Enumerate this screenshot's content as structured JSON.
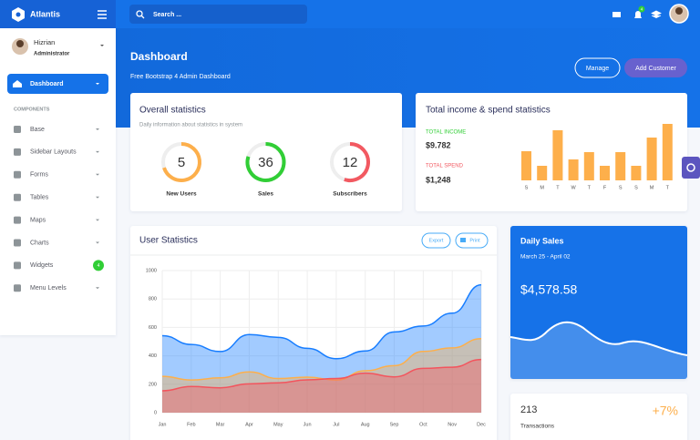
{
  "topbar": {
    "brand": "Atlantis",
    "search_placeholder": "Search ...",
    "notification_count": "4"
  },
  "sidebar": {
    "user": {
      "name": "Hizrian",
      "role": "Administrator"
    },
    "active_item": "Dashboard",
    "section": "COMPONENTS",
    "items": [
      "Base",
      "Sidebar Layouts",
      "Forms",
      "Tables",
      "Maps",
      "Charts",
      "Widgets",
      "Menu Levels"
    ],
    "widgets_badge": "4"
  },
  "header": {
    "title": "Dashboard",
    "subtitle": "Free Bootstrap 4 Admin Dashboard",
    "buttons": [
      "Manage",
      "Add Customer"
    ]
  },
  "overall_statistics": {
    "title": "Overall statistics",
    "subtitle": "Daily information about statistics in system",
    "stats": [
      {
        "value": 5,
        "label": "New Users",
        "color": "#fdaf4b"
      },
      {
        "value": 36,
        "label": "Sales",
        "color": "#31ce36"
      },
      {
        "value": 12,
        "label": "Subscribers",
        "color": "#f25961"
      }
    ]
  },
  "income_spend": {
    "title": "Total income & spend statistics",
    "income": {
      "label": "TOTAL INCOME",
      "value": "$9.782"
    },
    "spend": {
      "label": "TOTAL SPEND",
      "value": "$1,248"
    },
    "chart_data": {
      "type": "bar",
      "categories": [
        "S",
        "M",
        "T",
        "W",
        "T",
        "F",
        "S",
        "S",
        "M",
        "T"
      ],
      "values": [
        32,
        16,
        55,
        23,
        31,
        16,
        31,
        16,
        47,
        62
      ],
      "color": "#fdaf4b"
    }
  },
  "user_statistics": {
    "title": "User Statistics",
    "buttons": [
      "Export",
      "Print"
    ],
    "chart_data": {
      "type": "area",
      "categories": [
        "Jan",
        "Feb",
        "Mar",
        "Apr",
        "May",
        "Jun",
        "Jul",
        "Aug",
        "Sep",
        "Oct",
        "Nov",
        "Dec"
      ],
      "series": [
        {
          "color": "#177dff",
          "values": [
            542,
            480,
            430,
            550,
            530,
            453,
            380,
            434,
            568,
            610,
            700,
            900
          ]
        },
        {
          "color": "#fdaf4b",
          "values": [
            256,
            230,
            245,
            287,
            240,
            250,
            230,
            295,
            331,
            431,
            456,
            521
          ]
        },
        {
          "color": "#f3545d",
          "values": [
            154,
            184,
            175,
            203,
            210,
            231,
            240,
            278,
            252,
            312,
            320,
            374
          ]
        }
      ],
      "ylim": [
        0,
        1000
      ],
      "yticks": [
        0,
        200,
        400,
        600,
        800,
        1000
      ],
      "grid": true
    }
  },
  "daily_sales": {
    "title": "Daily Sales",
    "date_range": "March 25 - April 02",
    "amount": "$4,578.58"
  },
  "transactions": {
    "value": 213,
    "label": "Transactions",
    "change": "+7%"
  }
}
